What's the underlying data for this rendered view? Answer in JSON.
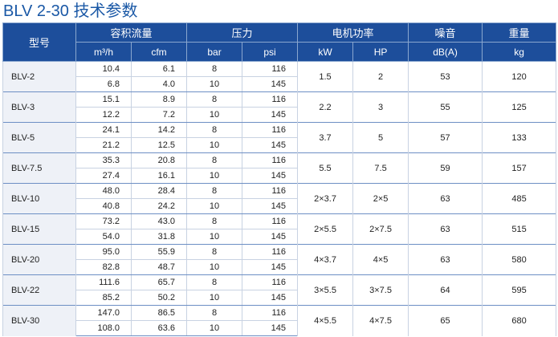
{
  "title": "BLV 2-30 技术参数",
  "headers": {
    "model": "型号",
    "flow": "容积流量",
    "pressure": "压力",
    "power": "电机功率",
    "noise": "噪音",
    "weight": "重量",
    "units": [
      "m³/h",
      "cfm",
      "bar",
      "psi",
      "kW",
      "HP",
      "dB(A)",
      "kg"
    ]
  },
  "rows": [
    {
      "model": "BLV-2",
      "m3h": [
        "10.4",
        "6.8"
      ],
      "cfm": [
        "6.1",
        "4.0"
      ],
      "bar": [
        "8",
        "10"
      ],
      "psi": [
        "116",
        "145"
      ],
      "kw": "1.5",
      "hp": "2",
      "db": "53",
      "kg": "120"
    },
    {
      "model": "BLV-3",
      "m3h": [
        "15.1",
        "12.2"
      ],
      "cfm": [
        "8.9",
        "7.2"
      ],
      "bar": [
        "8",
        "10"
      ],
      "psi": [
        "116",
        "145"
      ],
      "kw": "2.2",
      "hp": "3",
      "db": "55",
      "kg": "125"
    },
    {
      "model": "BLV-5",
      "m3h": [
        "24.1",
        "21.2"
      ],
      "cfm": [
        "14.2",
        "12.5"
      ],
      "bar": [
        "8",
        "10"
      ],
      "psi": [
        "116",
        "145"
      ],
      "kw": "3.7",
      "hp": "5",
      "db": "57",
      "kg": "133"
    },
    {
      "model": "BLV-7.5",
      "m3h": [
        "35.3",
        "27.4"
      ],
      "cfm": [
        "20.8",
        "16.1"
      ],
      "bar": [
        "8",
        "10"
      ],
      "psi": [
        "116",
        "145"
      ],
      "kw": "5.5",
      "hp": "7.5",
      "db": "59",
      "kg": "157"
    },
    {
      "model": "BLV-10",
      "m3h": [
        "48.0",
        "40.8"
      ],
      "cfm": [
        "28.4",
        "24.2"
      ],
      "bar": [
        "8",
        "10"
      ],
      "psi": [
        "116",
        "145"
      ],
      "kw": "2×3.7",
      "hp": "2×5",
      "db": "63",
      "kg": "485"
    },
    {
      "model": "BLV-15",
      "m3h": [
        "73.2",
        "54.0"
      ],
      "cfm": [
        "43.0",
        "31.8"
      ],
      "bar": [
        "8",
        "10"
      ],
      "psi": [
        "116",
        "145"
      ],
      "kw": "2×5.5",
      "hp": "2×7.5",
      "db": "63",
      "kg": "515"
    },
    {
      "model": "BLV-20",
      "m3h": [
        "95.0",
        "82.8"
      ],
      "cfm": [
        "55.9",
        "48.7"
      ],
      "bar": [
        "8",
        "10"
      ],
      "psi": [
        "116",
        "145"
      ],
      "kw": "4×3.7",
      "hp": "4×5",
      "db": "63",
      "kg": "580"
    },
    {
      "model": "BLV-22",
      "m3h": [
        "111.6",
        "85.2"
      ],
      "cfm": [
        "65.7",
        "50.2"
      ],
      "bar": [
        "8",
        "10"
      ],
      "psi": [
        "116",
        "145"
      ],
      "kw": "3×5.5",
      "hp": "3×7.5",
      "db": "64",
      "kg": "595"
    },
    {
      "model": "BLV-30",
      "m3h": [
        "147.0",
        "108.0"
      ],
      "cfm": [
        "86.5",
        "63.6"
      ],
      "bar": [
        "8",
        "10"
      ],
      "psi": [
        "116",
        "145"
      ],
      "kw": "4×5.5",
      "hp": "4×7.5",
      "db": "65",
      "kg": "680"
    }
  ]
}
